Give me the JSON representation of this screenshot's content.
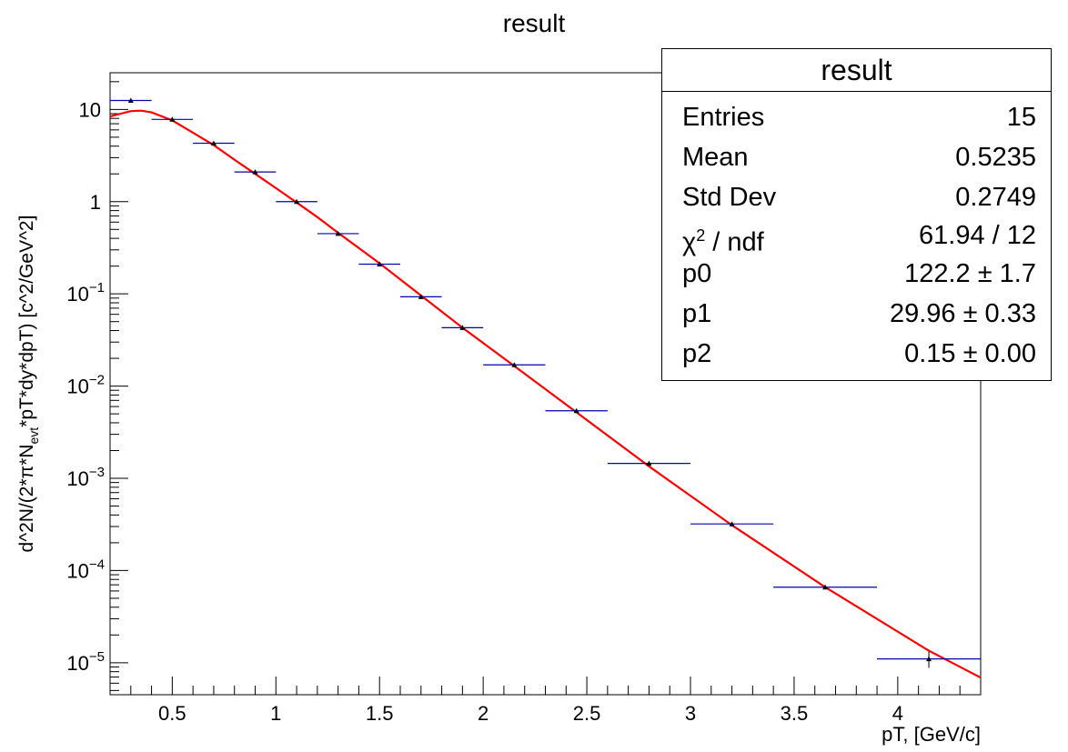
{
  "chart_data": {
    "type": "scatter",
    "title": "result",
    "xlabel": "pT, [GeV/c]",
    "ylabel": "d^2N/(2*π*N_evt*pT*dy*dpT) [c^2/GeV^2]",
    "ylabel_parts": {
      "a": "d^2N/(2*π*N",
      "sub": "evt",
      "b": "*pT*dy*dpT) [c^2/GeV^2]"
    },
    "xlim": [
      0.2,
      4.4
    ],
    "ylim": [
      4.5e-06,
      25
    ],
    "yscale": "log",
    "x_ticks": [
      0.5,
      1,
      1.5,
      2,
      2.5,
      3,
      3.5,
      4
    ],
    "x_tick_labels": [
      "0.5",
      "1",
      "1.5",
      "2",
      "2.5",
      "3",
      "3.5",
      "4"
    ],
    "y_ticks": [
      1e-05,
      0.0001,
      0.001,
      0.01,
      0.1,
      1,
      10
    ],
    "y_tick_labels": [
      {
        "base": "10",
        "exp": "−5"
      },
      {
        "base": "10",
        "exp": "−4"
      },
      {
        "base": "10",
        "exp": "−3"
      },
      {
        "base": "10",
        "exp": "−2"
      },
      {
        "base": "10",
        "exp": "−1"
      },
      {
        "base": "1",
        "exp": ""
      },
      {
        "base": "10",
        "exp": ""
      }
    ],
    "data_points": [
      {
        "x": 0.3,
        "xerr": 0.1,
        "y": 12.5
      },
      {
        "x": 0.5,
        "xerr": 0.1,
        "y": 7.8
      },
      {
        "x": 0.7,
        "xerr": 0.1,
        "y": 4.3
      },
      {
        "x": 0.9,
        "xerr": 0.1,
        "y": 2.1
      },
      {
        "x": 1.1,
        "xerr": 0.1,
        "y": 1.0
      },
      {
        "x": 1.3,
        "xerr": 0.1,
        "y": 0.45
      },
      {
        "x": 1.5,
        "xerr": 0.1,
        "y": 0.21
      },
      {
        "x": 1.7,
        "xerr": 0.1,
        "y": 0.093
      },
      {
        "x": 1.9,
        "xerr": 0.1,
        "y": 0.043
      },
      {
        "x": 2.15,
        "xerr": 0.15,
        "y": 0.017
      },
      {
        "x": 2.45,
        "xerr": 0.15,
        "y": 0.0054
      },
      {
        "x": 2.8,
        "xerr": 0.2,
        "y": 0.00145
      },
      {
        "x": 3.2,
        "xerr": 0.2,
        "y": 0.00032
      },
      {
        "x": 3.65,
        "xerr": 0.25,
        "y": 6.6e-05
      },
      {
        "x": 4.15,
        "xerr": 0.25,
        "y": 1.1e-05,
        "yerr": 2.2e-06
      }
    ],
    "fit_curve": {
      "color": "#ff0000",
      "points": [
        [
          0.2,
          8.4
        ],
        [
          0.3,
          9.6
        ],
        [
          0.35,
          9.7
        ],
        [
          0.4,
          9.3
        ],
        [
          0.5,
          7.6
        ],
        [
          0.6,
          5.6
        ],
        [
          0.7,
          4.1
        ],
        [
          0.8,
          2.85
        ],
        [
          0.9,
          2.0
        ],
        [
          1.0,
          1.4
        ],
        [
          1.1,
          0.98
        ],
        [
          1.2,
          0.68
        ],
        [
          1.3,
          0.46
        ],
        [
          1.5,
          0.215
        ],
        [
          1.7,
          0.096
        ],
        [
          1.9,
          0.043
        ],
        [
          2.15,
          0.0165
        ],
        [
          2.45,
          0.0052
        ],
        [
          2.8,
          0.00135
        ],
        [
          3.2,
          0.00031
        ],
        [
          3.65,
          6.6e-05
        ],
        [
          4.15,
          1.35e-05
        ],
        [
          4.4,
          6.9e-06
        ]
      ]
    },
    "marker_color": "#000000",
    "error_bar_color": "#0000b0",
    "stats_box": {
      "title": "result",
      "rows": [
        {
          "key": "Entries",
          "value": "15"
        },
        {
          "key": "Mean",
          "value": "0.5235"
        },
        {
          "key": "Std Dev",
          "value": "0.2749"
        },
        {
          "key_sym": "χ",
          "key_sup": "2",
          "key_rest": " / ndf",
          "value": "61.94 / 12"
        },
        {
          "key": "p0",
          "value": "122.2 ± 1.7"
        },
        {
          "key": "p1",
          "value": "29.96 ± 0.33"
        },
        {
          "key": "p2",
          "value": "0.15 ± 0.00"
        }
      ]
    }
  }
}
